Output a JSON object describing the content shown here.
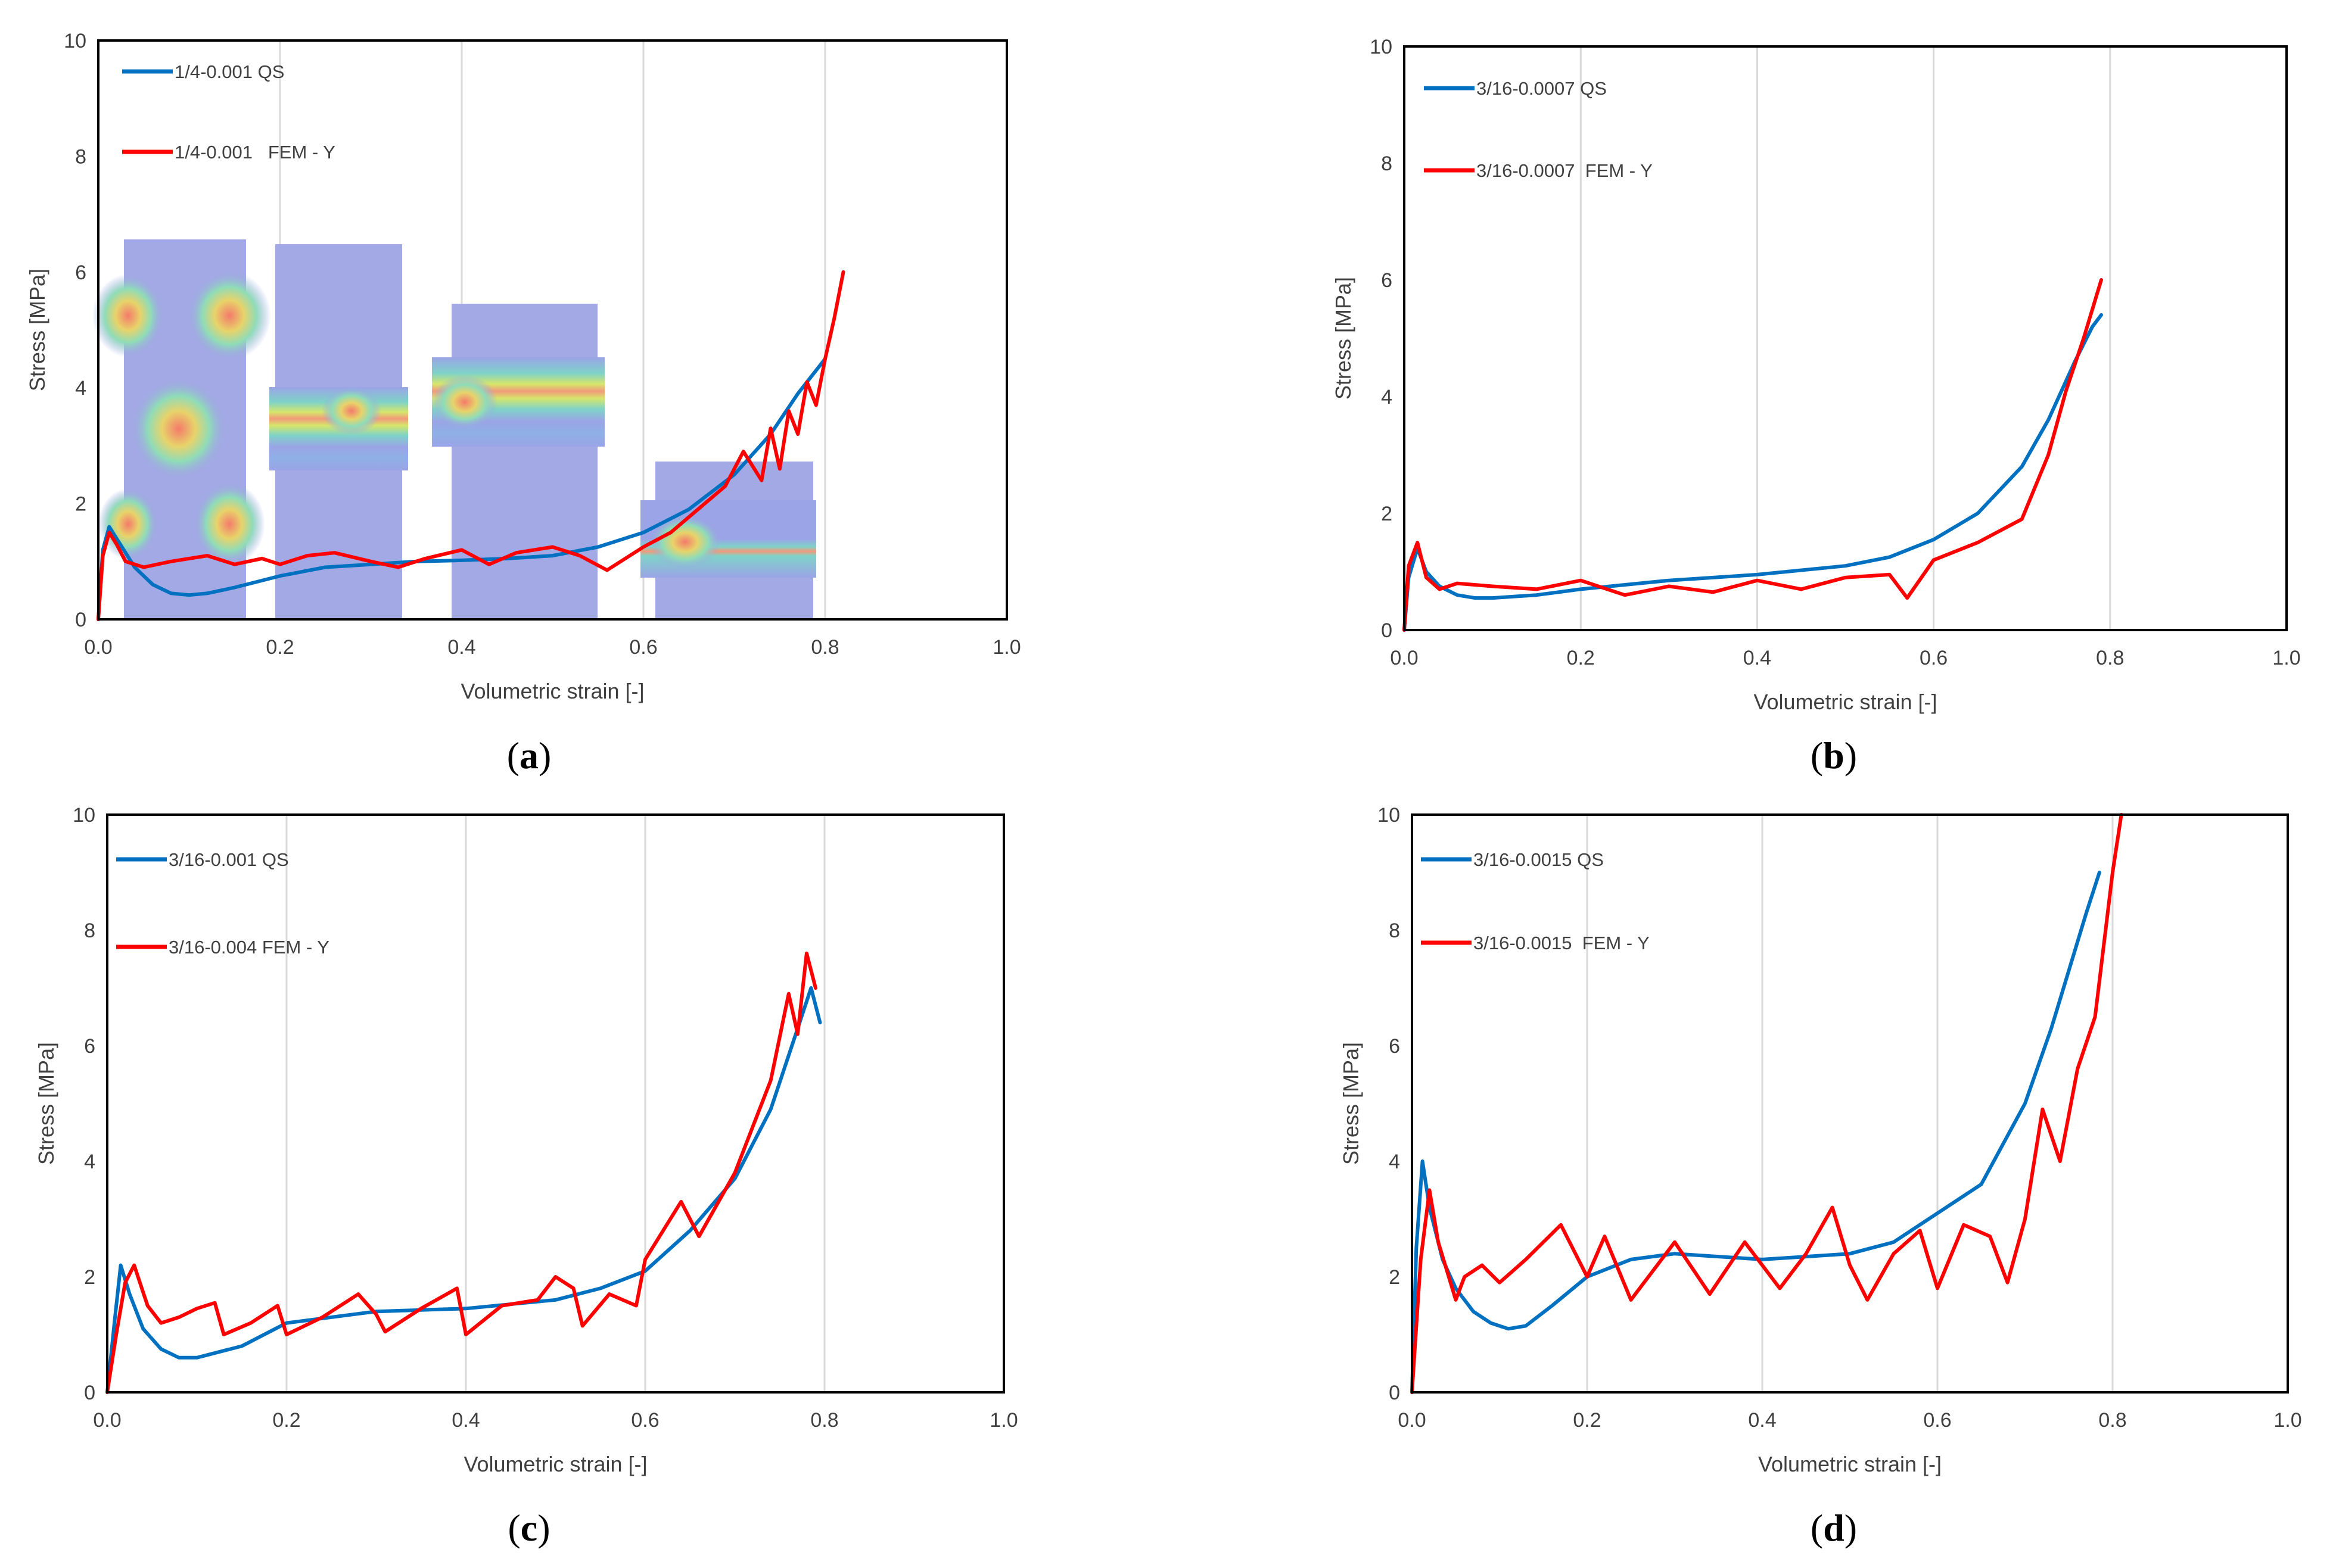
{
  "colors": {
    "qs": "#0070c0",
    "fem": "#ff0000",
    "grid": "#d9d9d9",
    "frame": "#000000",
    "text": "#404040"
  },
  "chart_data": [
    {
      "id": "a",
      "type": "line",
      "caption": "a",
      "xlabel": "Volumetric strain [-]",
      "ylabel": "Stress [MPa]",
      "xlim": [
        0,
        1
      ],
      "ylim": [
        0,
        10
      ],
      "xticks": [
        "0.0",
        "0.2",
        "0.4",
        "0.6",
        "0.8",
        "1.0"
      ],
      "yticks": [
        "0",
        "2",
        "4",
        "6",
        "8",
        "10"
      ],
      "grid": "vertical",
      "legend_position": "top-left",
      "inset_images": "FEM deformation contour snapshots at four strain stages",
      "series": [
        {
          "name": "1/4-0.001 QS",
          "color_key": "qs",
          "x": [
            0,
            0.005,
            0.012,
            0.02,
            0.04,
            0.06,
            0.08,
            0.1,
            0.12,
            0.15,
            0.2,
            0.25,
            0.3,
            0.35,
            0.4,
            0.45,
            0.5,
            0.55,
            0.6,
            0.65,
            0.7,
            0.74,
            0.77,
            0.79,
            0.8
          ],
          "y": [
            0,
            1.2,
            1.6,
            1.4,
            0.9,
            0.6,
            0.45,
            0.42,
            0.45,
            0.55,
            0.75,
            0.9,
            0.95,
            1.0,
            1.02,
            1.05,
            1.1,
            1.25,
            1.5,
            1.9,
            2.5,
            3.2,
            3.9,
            4.3,
            4.5
          ]
        },
        {
          "name": "1/4-0.001   FEM - Y",
          "color_key": "fem",
          "x": [
            0,
            0.005,
            0.012,
            0.02,
            0.03,
            0.05,
            0.08,
            0.1,
            0.12,
            0.15,
            0.18,
            0.2,
            0.23,
            0.26,
            0.3,
            0.33,
            0.36,
            0.4,
            0.43,
            0.46,
            0.5,
            0.53,
            0.56,
            0.6,
            0.63,
            0.66,
            0.69,
            0.71,
            0.73,
            0.74,
            0.75,
            0.76,
            0.77,
            0.78,
            0.79,
            0.8,
            0.81,
            0.82
          ],
          "y": [
            0,
            1.1,
            1.5,
            1.3,
            1.0,
            0.9,
            1.0,
            1.05,
            1.1,
            0.95,
            1.05,
            0.95,
            1.1,
            1.15,
            1.0,
            0.9,
            1.05,
            1.2,
            0.95,
            1.15,
            1.25,
            1.1,
            0.85,
            1.25,
            1.5,
            1.9,
            2.3,
            2.9,
            2.4,
            3.3,
            2.6,
            3.6,
            3.2,
            4.1,
            3.7,
            4.5,
            5.2,
            6.0
          ]
        }
      ]
    },
    {
      "id": "b",
      "type": "line",
      "caption": "b",
      "xlabel": "Volumetric strain [-]",
      "ylabel": "Stress [MPa]",
      "xlim": [
        0,
        1
      ],
      "ylim": [
        0,
        10
      ],
      "xticks": [
        "0.0",
        "0.2",
        "0.4",
        "0.6",
        "0.8",
        "1.0"
      ],
      "yticks": [
        "0",
        "2",
        "4",
        "6",
        "8",
        "10"
      ],
      "grid": "vertical",
      "legend_position": "top-left",
      "series": [
        {
          "name": "3/16-0.0007 QS",
          "color_key": "qs",
          "x": [
            0,
            0.005,
            0.015,
            0.025,
            0.04,
            0.06,
            0.08,
            0.1,
            0.15,
            0.2,
            0.3,
            0.4,
            0.5,
            0.55,
            0.6,
            0.65,
            0.7,
            0.73,
            0.76,
            0.78,
            0.79
          ],
          "y": [
            0,
            0.9,
            1.4,
            1.0,
            0.75,
            0.6,
            0.55,
            0.55,
            0.6,
            0.7,
            0.85,
            0.95,
            1.1,
            1.25,
            1.55,
            2.0,
            2.8,
            3.6,
            4.6,
            5.2,
            5.4
          ]
        },
        {
          "name": "3/16-0.0007  FEM - Y",
          "color_key": "fem",
          "x": [
            0,
            0.005,
            0.015,
            0.025,
            0.04,
            0.06,
            0.1,
            0.15,
            0.2,
            0.25,
            0.3,
            0.35,
            0.4,
            0.45,
            0.5,
            0.55,
            0.57,
            0.6,
            0.65,
            0.7,
            0.73,
            0.75,
            0.77,
            0.79
          ],
          "y": [
            0,
            1.1,
            1.5,
            0.9,
            0.7,
            0.8,
            0.75,
            0.7,
            0.85,
            0.6,
            0.75,
            0.65,
            0.85,
            0.7,
            0.9,
            0.95,
            0.55,
            1.2,
            1.5,
            1.9,
            3.0,
            4.1,
            5.0,
            6.0
          ]
        }
      ]
    },
    {
      "id": "c",
      "type": "line",
      "caption": "c",
      "xlabel": "Volumetric strain [-]",
      "ylabel": "Stress [MPa]",
      "xlim": [
        0,
        1
      ],
      "ylim": [
        0,
        10
      ],
      "xticks": [
        "0.0",
        "0.2",
        "0.4",
        "0.6",
        "0.8",
        "1.0"
      ],
      "yticks": [
        "0",
        "2",
        "4",
        "6",
        "8",
        "10"
      ],
      "grid": "vertical",
      "legend_position": "top-left",
      "series": [
        {
          "name": "3/16-0.001 QS",
          "color_key": "qs",
          "x": [
            0,
            0.008,
            0.015,
            0.025,
            0.04,
            0.06,
            0.08,
            0.1,
            0.15,
            0.2,
            0.3,
            0.4,
            0.5,
            0.55,
            0.6,
            0.65,
            0.7,
            0.74,
            0.77,
            0.785,
            0.795
          ],
          "y": [
            0,
            1.2,
            2.2,
            1.7,
            1.1,
            0.75,
            0.6,
            0.6,
            0.8,
            1.2,
            1.4,
            1.45,
            1.6,
            1.8,
            2.1,
            2.8,
            3.7,
            4.9,
            6.3,
            7.0,
            6.4
          ]
        },
        {
          "name": "3/16-0.004 FEM - Y",
          "color_key": "fem",
          "x": [
            0,
            0.01,
            0.02,
            0.03,
            0.045,
            0.06,
            0.08,
            0.1,
            0.12,
            0.13,
            0.16,
            0.19,
            0.2,
            0.24,
            0.28,
            0.3,
            0.31,
            0.35,
            0.39,
            0.4,
            0.44,
            0.48,
            0.5,
            0.52,
            0.53,
            0.56,
            0.59,
            0.6,
            0.64,
            0.66,
            0.7,
            0.72,
            0.74,
            0.76,
            0.77,
            0.78,
            0.79
          ],
          "y": [
            0,
            1.0,
            1.9,
            2.2,
            1.5,
            1.2,
            1.3,
            1.45,
            1.55,
            1.0,
            1.2,
            1.5,
            1.0,
            1.3,
            1.7,
            1.35,
            1.05,
            1.45,
            1.8,
            1.0,
            1.5,
            1.6,
            2.0,
            1.8,
            1.15,
            1.7,
            1.5,
            2.3,
            3.3,
            2.7,
            3.8,
            4.6,
            5.4,
            6.9,
            6.2,
            7.6,
            7.0
          ]
        }
      ]
    },
    {
      "id": "d",
      "type": "line",
      "caption": "d",
      "xlabel": "Volumetric strain [-]",
      "ylabel": "Stress [MPa]",
      "xlim": [
        0,
        1
      ],
      "ylim": [
        0,
        10
      ],
      "xticks": [
        "0.0",
        "0.2",
        "0.4",
        "0.6",
        "0.8",
        "1.0"
      ],
      "yticks": [
        "0",
        "2",
        "4",
        "6",
        "8",
        "10"
      ],
      "grid": "vertical",
      "legend_position": "top-left",
      "series": [
        {
          "name": "3/16-0.0015 QS",
          "color_key": "qs",
          "x": [
            0,
            0.005,
            0.012,
            0.02,
            0.035,
            0.05,
            0.07,
            0.09,
            0.11,
            0.13,
            0.16,
            0.2,
            0.25,
            0.3,
            0.35,
            0.4,
            0.45,
            0.5,
            0.55,
            0.6,
            0.65,
            0.7,
            0.73,
            0.75,
            0.77,
            0.785
          ],
          "y": [
            0,
            2.5,
            4.0,
            3.2,
            2.3,
            1.8,
            1.4,
            1.2,
            1.1,
            1.15,
            1.5,
            2.0,
            2.3,
            2.4,
            2.35,
            2.3,
            2.35,
            2.4,
            2.6,
            3.1,
            3.6,
            5.0,
            6.3,
            7.3,
            8.3,
            9.0
          ]
        },
        {
          "name": "3/16-0.0015  FEM - Y",
          "color_key": "fem",
          "x": [
            0,
            0.01,
            0.02,
            0.03,
            0.05,
            0.06,
            0.08,
            0.1,
            0.13,
            0.17,
            0.2,
            0.22,
            0.25,
            0.3,
            0.34,
            0.38,
            0.42,
            0.45,
            0.48,
            0.5,
            0.52,
            0.55,
            0.58,
            0.6,
            0.63,
            0.66,
            0.68,
            0.7,
            0.72,
            0.74,
            0.76,
            0.78,
            0.8,
            0.81
          ],
          "y": [
            0,
            2.3,
            3.5,
            2.6,
            1.6,
            2.0,
            2.2,
            1.9,
            2.3,
            2.9,
            2.0,
            2.7,
            1.6,
            2.6,
            1.7,
            2.6,
            1.8,
            2.4,
            3.2,
            2.2,
            1.6,
            2.4,
            2.8,
            1.8,
            2.9,
            2.7,
            1.9,
            3.0,
            4.9,
            4.0,
            5.6,
            6.5,
            9.0,
            10.0
          ]
        }
      ]
    }
  ]
}
